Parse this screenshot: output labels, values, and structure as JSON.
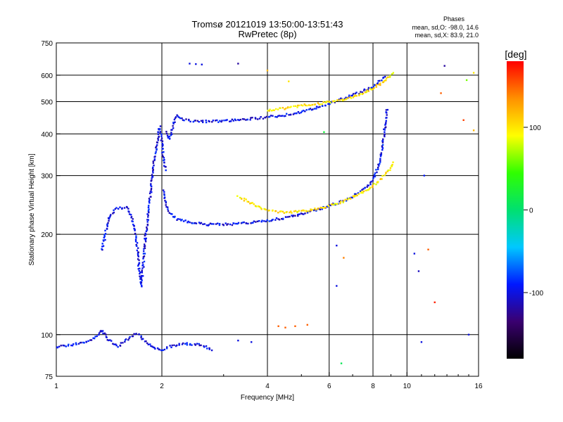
{
  "chart_data": {
    "type": "scatter",
    "title": "Tromsø 20121019 13:50:00-13:51:43",
    "subtitle": "RwPretec (8p)",
    "xlabel": "Frequency [MHz]",
    "ylabel": "Stationary phase Virtual Height [km]",
    "x_scale": "log",
    "y_scale": "log",
    "xlim": [
      1,
      16
    ],
    "ylim": [
      75,
      750
    ],
    "x_ticks": [
      1,
      2,
      4,
      6,
      8,
      10,
      16
    ],
    "y_ticks": [
      75,
      100,
      200,
      300,
      400,
      500,
      600,
      750
    ],
    "grid_x": [
      2,
      4,
      6,
      8,
      10
    ],
    "grid_y": [
      100,
      200,
      300,
      400,
      500,
      600
    ],
    "grid": true,
    "phase_stats": {
      "header": "Phases",
      "line1": "mean, sd,O: -98.0, 14.6",
      "line2": "mean, sd,X:  83.9, 21.0"
    },
    "colorbar": {
      "label": "[deg]",
      "ticks": [
        {
          "value": 100,
          "label": "100"
        },
        {
          "value": 0,
          "label": "0"
        },
        {
          "value": -100,
          "label": "-100"
        }
      ],
      "range": [
        -180,
        180
      ],
      "colors": [
        "#000000",
        "#3a0070",
        "#0018ff",
        "#00c8ff",
        "#00e070",
        "#30ff00",
        "#ffff00",
        "#ff9000",
        "#ff0000"
      ]
    },
    "traces": [
      {
        "phase": -100,
        "points": [
          [
            2.05,
            405
          ],
          [
            2.1,
            385
          ],
          [
            2.2,
            455
          ],
          [
            2.3,
            442
          ],
          [
            2.5,
            436
          ],
          [
            2.8,
            436
          ],
          [
            3.2,
            440
          ],
          [
            3.6,
            444
          ],
          [
            4.0,
            449
          ],
          [
            4.5,
            456
          ],
          [
            5.0,
            465
          ],
          [
            5.5,
            478
          ],
          [
            6.0,
            493
          ],
          [
            6.5,
            508
          ],
          [
            7.0,
            522
          ],
          [
            7.5,
            538
          ],
          [
            8.0,
            556
          ],
          [
            8.4,
            578
          ],
          [
            8.7,
            598
          ]
        ]
      },
      {
        "phase": -100,
        "points": [
          [
            2.02,
            270
          ],
          [
            2.05,
            250
          ],
          [
            2.1,
            232
          ],
          [
            2.2,
            222
          ],
          [
            2.4,
            217
          ],
          [
            2.7,
            214
          ],
          [
            3.0,
            214
          ],
          [
            3.5,
            216
          ],
          [
            4.0,
            220
          ],
          [
            4.5,
            224
          ],
          [
            5.0,
            230
          ],
          [
            5.5,
            236
          ],
          [
            6.0,
            243
          ],
          [
            6.5,
            250
          ],
          [
            7.0,
            259
          ],
          [
            7.5,
            272
          ],
          [
            8.0,
            290
          ],
          [
            8.3,
            320
          ],
          [
            8.5,
            360
          ],
          [
            8.6,
            400
          ],
          [
            8.7,
            440
          ],
          [
            8.8,
            480
          ]
        ]
      },
      {
        "phase": 100,
        "points": [
          [
            3.3,
            260
          ],
          [
            3.6,
            248
          ],
          [
            3.9,
            238
          ],
          [
            4.2,
            234
          ],
          [
            4.6,
            233
          ],
          [
            5.0,
            234
          ],
          [
            5.5,
            238
          ],
          [
            6.0,
            243
          ],
          [
            6.5,
            250
          ],
          [
            7.0,
            258
          ],
          [
            7.5,
            268
          ],
          [
            8.0,
            280
          ],
          [
            8.5,
            295
          ],
          [
            9.0,
            315
          ],
          [
            9.2,
            330
          ]
        ]
      },
      {
        "phase": 100,
        "points": [
          [
            4.0,
            470
          ],
          [
            4.5,
            478
          ],
          [
            5.0,
            486
          ],
          [
            5.5,
            492
          ],
          [
            6.0,
            498
          ],
          [
            6.5,
            506
          ],
          [
            7.0,
            516
          ],
          [
            7.5,
            530
          ],
          [
            8.0,
            548
          ],
          [
            8.5,
            570
          ],
          [
            9.0,
            600
          ],
          [
            9.2,
            615
          ]
        ]
      },
      {
        "phase": -100,
        "points": [
          [
            1.35,
            180
          ],
          [
            1.38,
            200
          ],
          [
            1.42,
            228
          ],
          [
            1.5,
            240
          ],
          [
            1.6,
            240
          ],
          [
            1.65,
            220
          ],
          [
            1.7,
            185
          ],
          [
            1.72,
            160
          ],
          [
            1.75,
            140
          ],
          [
            1.8,
            200
          ],
          [
            1.85,
            255
          ],
          [
            1.88,
            300
          ],
          [
            1.9,
            330
          ],
          [
            1.93,
            360
          ],
          [
            1.95,
            390
          ],
          [
            1.97,
            420
          ],
          [
            2.0,
            380
          ],
          [
            2.02,
            340
          ],
          [
            2.05,
            310
          ]
        ]
      },
      {
        "phase": -100,
        "points": [
          [
            1.0,
            92
          ],
          [
            1.1,
            93
          ],
          [
            1.2,
            95
          ],
          [
            1.3,
            98
          ],
          [
            1.35,
            103
          ],
          [
            1.4,
            97
          ],
          [
            1.5,
            92
          ],
          [
            1.6,
            97
          ],
          [
            1.7,
            101
          ],
          [
            1.8,
            95
          ],
          [
            1.9,
            91
          ],
          [
            2.0,
            90
          ],
          [
            2.1,
            92
          ],
          [
            2.3,
            94
          ],
          [
            2.6,
            93
          ],
          [
            2.8,
            90
          ]
        ]
      }
    ],
    "scattered_points": [
      {
        "x": 2.4,
        "y": 650,
        "phase": -100
      },
      {
        "x": 2.5,
        "y": 648,
        "phase": -100
      },
      {
        "x": 2.6,
        "y": 646,
        "phase": -100
      },
      {
        "x": 3.3,
        "y": 650,
        "phase": -120
      },
      {
        "x": 4.0,
        "y": 620,
        "phase": 120
      },
      {
        "x": 4.6,
        "y": 575,
        "phase": 100
      },
      {
        "x": 5.8,
        "y": 405,
        "phase": 20
      },
      {
        "x": 6.3,
        "y": 185,
        "phase": -100
      },
      {
        "x": 6.3,
        "y": 140,
        "phase": -100
      },
      {
        "x": 6.5,
        "y": 82,
        "phase": 10
      },
      {
        "x": 6.6,
        "y": 170,
        "phase": 140
      },
      {
        "x": 10.5,
        "y": 175,
        "phase": -100
      },
      {
        "x": 10.8,
        "y": 155,
        "phase": -110
      },
      {
        "x": 11.2,
        "y": 300,
        "phase": -90
      },
      {
        "x": 11.5,
        "y": 180,
        "phase": 150
      },
      {
        "x": 12.0,
        "y": 125,
        "phase": 170
      },
      {
        "x": 12.5,
        "y": 530,
        "phase": 150
      },
      {
        "x": 12.8,
        "y": 640,
        "phase": -120
      },
      {
        "x": 14.5,
        "y": 440,
        "phase": 160
      },
      {
        "x": 14.8,
        "y": 580,
        "phase": 60
      },
      {
        "x": 15.5,
        "y": 610,
        "phase": 100
      },
      {
        "x": 15.5,
        "y": 410,
        "phase": 120
      },
      {
        "x": 15.0,
        "y": 100,
        "phase": -100
      },
      {
        "x": 11.0,
        "y": 95,
        "phase": -100
      },
      {
        "x": 4.3,
        "y": 106,
        "phase": 150
      },
      {
        "x": 4.5,
        "y": 105,
        "phase": 150
      },
      {
        "x": 4.8,
        "y": 106,
        "phase": 150
      },
      {
        "x": 5.2,
        "y": 107,
        "phase": 150
      },
      {
        "x": 3.3,
        "y": 96,
        "phase": -100
      },
      {
        "x": 3.6,
        "y": 95,
        "phase": -100
      }
    ]
  }
}
